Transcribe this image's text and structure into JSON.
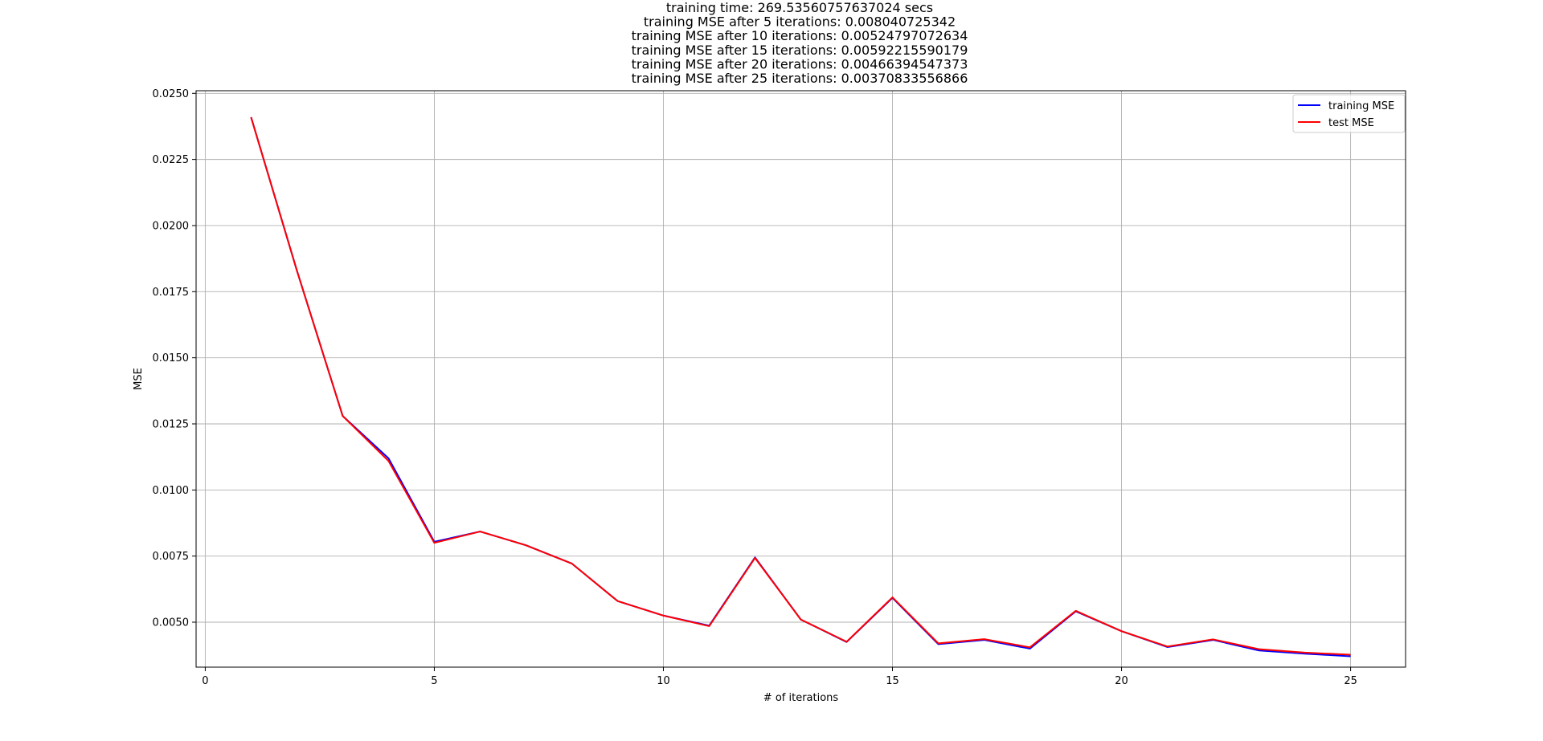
{
  "chart_data": {
    "type": "line",
    "title_lines": [
      "training time: 269.53560757637024 secs",
      "training MSE after 5 iterations: 0.008040725342",
      "training MSE after 10 iterations: 0.00524797072634",
      "training MSE after 15 iterations: 0.00592215590179",
      "training MSE after 20 iterations: 0.00466394547373",
      "training MSE after 25 iterations: 0.00370833556866"
    ],
    "xlabel": "# of iterations",
    "ylabel": "MSE",
    "xlim": [
      -0.2,
      26.2
    ],
    "ylim": [
      0.0033,
      0.0251
    ],
    "xticks": [
      0,
      5,
      10,
      15,
      20,
      25
    ],
    "yticks": [
      "0.0050",
      "0.0075",
      "0.0100",
      "0.0125",
      "0.0150",
      "0.0175",
      "0.0200",
      "0.0225",
      "0.0250"
    ],
    "grid": true,
    "legend_position": "top-right",
    "x": [
      1,
      2,
      3,
      4,
      5,
      6,
      7,
      8,
      9,
      10,
      11,
      12,
      13,
      14,
      15,
      16,
      17,
      18,
      19,
      20,
      21,
      22,
      23,
      24,
      25
    ],
    "series": [
      {
        "name": "training MSE",
        "color": "#0000ff",
        "values": [
          0.0241,
          0.0183,
          0.0128,
          0.0112,
          0.00804,
          0.00843,
          0.00791,
          0.00722,
          0.0058,
          0.00525,
          0.00487,
          0.00745,
          0.0051,
          0.00425,
          0.00592,
          0.00417,
          0.00433,
          0.004,
          0.00541,
          0.00466,
          0.00406,
          0.00433,
          0.00393,
          0.00381,
          0.00371
        ]
      },
      {
        "name": "test MSE",
        "color": "#ff0000",
        "values": [
          0.0241,
          0.0183,
          0.0128,
          0.0111,
          0.008,
          0.00843,
          0.00791,
          0.00722,
          0.0058,
          0.00525,
          0.00485,
          0.00743,
          0.0051,
          0.00426,
          0.00594,
          0.0042,
          0.00436,
          0.00405,
          0.00543,
          0.00466,
          0.00408,
          0.00435,
          0.00398,
          0.00385,
          0.00377
        ]
      }
    ]
  }
}
